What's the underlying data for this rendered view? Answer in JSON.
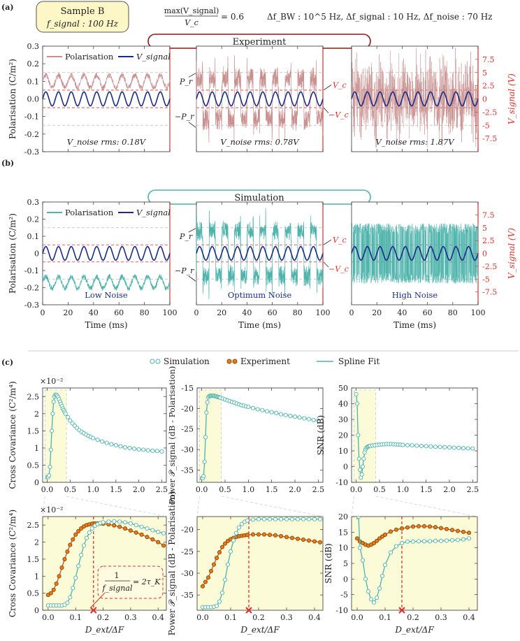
{
  "header": {
    "sample_name": "Sample B",
    "sample_freq": "f_signal : 100 Hz",
    "ratio_num": "max(V_signal)",
    "ratio_den": "V_c",
    "ratio_val": "= 0.6",
    "params": "Δf_BW : 10^5 Hz, Δf_signal : 10 Hz,   Δf_noise : 70 Hz"
  },
  "panel_labels": [
    "(a)",
    "(b)",
    "(c)"
  ],
  "colors": {
    "experiment": "#c99090",
    "simulation": "#4db3ab",
    "vsignal": "#1b2c82",
    "red": "#e0302b",
    "orange": "#e87b1e",
    "spline": "#cc4b34",
    "highlight": "#fcfbd7",
    "sample_box": "#fdf7c8"
  },
  "sections": {
    "experiment": {
      "title": "Experiment",
      "ylabel_left": "Polarisation (C/m²)",
      "ylabel_right": "V_signal (V)",
      "noise_labels": [
        "V_noise rms: 0.18V",
        "V_noise rms: 0.78V",
        "V_noise rms: 1.87V"
      ],
      "legend": [
        "Polarisation",
        "V_signal"
      ],
      "pr_labels": [
        "P_r",
        "−P_r"
      ],
      "vc_labels": [
        "V_c",
        "−V_c"
      ]
    },
    "simulation": {
      "title": "Simulation",
      "ylabel_left": "Polarisation (C/m²)",
      "ylabel_right": "V_signal (V)",
      "noise_labels": [
        "Low Noise",
        "Optimum Noise",
        "High Noise"
      ],
      "legend": [
        "Polarisation",
        "V_signal"
      ],
      "pr_labels": [
        "P_r",
        "−P_r"
      ],
      "vc_labels": [
        "V_c",
        "−V_c"
      ],
      "xlabel": "Time (ms)"
    }
  },
  "legend_c": [
    "Simulation",
    "Experiment",
    "Spline Fit"
  ],
  "annotation": {
    "numerator": "1",
    "denominator": "f_signal",
    "rhs": "= 2τ_K"
  },
  "chart_data": [
    {
      "type": "line",
      "id": "a-1",
      "title": "Experiment",
      "xlabel": "",
      "ylabel": "Polarisation (C/m²)",
      "xlim": [
        0,
        100
      ],
      "ylim": [
        -0.3,
        0.3
      ],
      "yticks": [
        "0.3",
        "0.2",
        "0.1",
        "0.0",
        "-0.1",
        "-0.2",
        "-0.3"
      ],
      "y2lim": [
        -10,
        10
      ],
      "y2ticks": [
        "7.5",
        "5",
        "2.5",
        "0",
        "-2.5",
        "-5",
        "-7.5"
      ],
      "series": [
        {
          "name": "Polarisation",
          "mean": 0.1,
          "noise_rms_V": 0.18
        },
        {
          "name": "V_signal",
          "amplitude_V": 1.5,
          "freq_Hz": 100
        }
      ]
    },
    {
      "type": "line",
      "id": "a-2",
      "title": "Experiment",
      "noise_rms_V": 0.78,
      "xlim": [
        0,
        100
      ],
      "ylim": [
        -0.3,
        0.3
      ]
    },
    {
      "type": "line",
      "id": "a-3",
      "title": "Experiment",
      "noise_rms_V": 1.87,
      "xlim": [
        0,
        100
      ],
      "ylim": [
        -0.3,
        0.3
      ]
    },
    {
      "type": "line",
      "id": "b-1",
      "title": "Simulation",
      "noise": "Low Noise",
      "xlim": [
        0,
        100
      ],
      "ylim": [
        -0.3,
        0.3
      ],
      "xticks": [
        "0",
        "20",
        "40",
        "60",
        "80",
        "100"
      ],
      "yticks": [
        "0.3",
        "0.2",
        "0.1",
        "0",
        "-0.1",
        "-0.2",
        "-0.3"
      ],
      "xlabel": "Time (ms)"
    },
    {
      "type": "line",
      "id": "b-2",
      "title": "Simulation",
      "noise": "Optimum Noise",
      "xlim": [
        0,
        100
      ],
      "ylim": [
        -0.3,
        0.3
      ],
      "xlabel": "Time (ms)"
    },
    {
      "type": "line",
      "id": "b-3",
      "title": "Simulation",
      "noise": "High Noise",
      "xlim": [
        0,
        100
      ],
      "ylim": [
        -0.3,
        0.3
      ],
      "xlabel": "Time (ms)"
    },
    {
      "type": "scatter",
      "id": "c-top-1",
      "ylabel": "Cross Covariance (C²/m⁴)",
      "exponent": "×10⁻²",
      "xlim": [
        -0.1,
        2.6
      ],
      "ylim": [
        0,
        2.75
      ],
      "xticks": [
        "0.0",
        "0.5",
        "1.0",
        "1.5",
        "2.0",
        "2.5"
      ],
      "yticks": [
        "0",
        "0.5",
        "1",
        "1.5",
        "2",
        "2.5"
      ],
      "simulation": {
        "x": [
          0,
          0.02,
          0.04,
          0.06,
          0.08,
          0.1,
          0.12,
          0.14,
          0.16,
          0.18,
          0.2,
          0.22,
          0.24,
          0.26,
          0.28,
          0.3,
          0.32,
          0.34,
          0.36,
          0.38,
          0.4,
          0.45,
          0.5,
          0.55,
          0.6,
          0.65,
          0.7,
          0.75,
          0.8,
          0.85,
          0.9,
          0.95,
          1.0,
          1.1,
          1.2,
          1.3,
          1.4,
          1.5,
          1.6,
          1.7,
          1.8,
          1.9,
          2.0,
          2.1,
          2.2,
          2.3,
          2.4,
          2.5
        ],
        "y": [
          0.15,
          0.15,
          0.2,
          0.45,
          0.95,
          1.5,
          2.0,
          2.35,
          2.5,
          2.55,
          2.55,
          2.52,
          2.48,
          2.42,
          2.35,
          2.28,
          2.22,
          2.15,
          2.1,
          2.05,
          2.0,
          1.9,
          1.8,
          1.72,
          1.65,
          1.58,
          1.52,
          1.47,
          1.43,
          1.39,
          1.35,
          1.32,
          1.29,
          1.24,
          1.19,
          1.15,
          1.11,
          1.08,
          1.05,
          1.02,
          1.0,
          0.98,
          0.96,
          0.95,
          0.93,
          0.92,
          0.91,
          0.9
        ]
      }
    },
    {
      "type": "scatter",
      "id": "c-top-2",
      "ylabel": "Power 𝒫_signal (dB - Polarisation)",
      "xlim": [
        -0.1,
        2.6
      ],
      "ylim": [
        -38,
        -15
      ],
      "xticks": [
        "0.0",
        "0.5",
        "1.0",
        "1.5",
        "2.0",
        "2.5"
      ],
      "yticks": [
        "-15",
        "-20",
        "-25",
        "-30",
        "-35"
      ],
      "simulation": {
        "x": [
          0,
          0.02,
          0.04,
          0.06,
          0.08,
          0.1,
          0.12,
          0.14,
          0.16,
          0.18,
          0.2,
          0.22,
          0.24,
          0.26,
          0.28,
          0.3,
          0.32,
          0.34,
          0.36,
          0.38,
          0.4,
          0.45,
          0.5,
          0.55,
          0.6,
          0.65,
          0.7,
          0.75,
          0.8,
          0.85,
          0.9,
          0.95,
          1.0,
          1.1,
          1.2,
          1.3,
          1.4,
          1.5,
          1.6,
          1.7,
          1.8,
          1.9,
          2.0,
          2.1,
          2.2,
          2.3,
          2.4,
          2.5
        ],
        "y": [
          -37,
          -37,
          -36.5,
          -33,
          -27,
          -21,
          -18.5,
          -17.3,
          -17.0,
          -16.9,
          -16.9,
          -16.9,
          -16.9,
          -16.9,
          -17.0,
          -17.0,
          -17.1,
          -17.2,
          -17.2,
          -17.3,
          -17.4,
          -17.6,
          -17.8,
          -18.0,
          -18.2,
          -18.4,
          -18.6,
          -18.8,
          -19.0,
          -19.2,
          -19.3,
          -19.5,
          -19.6,
          -19.9,
          -20.2,
          -20.4,
          -20.7,
          -20.9,
          -21.1,
          -21.4,
          -21.6,
          -21.8,
          -22.0,
          -22.2,
          -22.4,
          -22.6,
          -22.8,
          -23.0
        ]
      }
    },
    {
      "type": "scatter",
      "id": "c-top-3",
      "ylabel": "SNR (dB)",
      "xlim": [
        -0.1,
        2.6
      ],
      "ylim": [
        -10,
        50
      ],
      "xticks": [
        "0.0",
        "0.5",
        "1.0",
        "1.5",
        "2.0",
        "2.5"
      ],
      "yticks": [
        "50",
        "40",
        "30",
        "20",
        "10",
        "0",
        "-10"
      ],
      "simulation": {
        "x": [
          0,
          0.02,
          0.04,
          0.06,
          0.08,
          0.1,
          0.12,
          0.14,
          0.16,
          0.18,
          0.2,
          0.22,
          0.24,
          0.26,
          0.28,
          0.3,
          0.35,
          0.4,
          0.45,
          0.5,
          0.55,
          0.6,
          0.65,
          0.7,
          0.75,
          0.8,
          0.85,
          0.9,
          0.95,
          1.0,
          1.1,
          1.2,
          1.3,
          1.4,
          1.5,
          1.6,
          1.7,
          1.8,
          1.9,
          2.0,
          2.1,
          2.2,
          2.3,
          2.4,
          2.5
        ],
        "y": [
          46,
          40,
          20,
          5,
          -2,
          -7,
          -5,
          0,
          5,
          9,
          11,
          12,
          12.5,
          12.8,
          13,
          13.2,
          13.4,
          13.6,
          13.8,
          14,
          14.1,
          14.2,
          14.3,
          14.3,
          14.3,
          14.2,
          14.1,
          14.0,
          13.9,
          13.8,
          13.6,
          13.5,
          13.3,
          13.1,
          13.0,
          12.8,
          12.6,
          12.5,
          12.3,
          12.2,
          12.0,
          11.9,
          11.7,
          11.6,
          11.5
        ]
      }
    },
    {
      "type": "scatter",
      "id": "c-bot-1",
      "ylabel": "Cross Covariance (C²/m⁴)",
      "exponent": "×10⁻²",
      "xlabel": "D_ext/ΔF",
      "xlim": [
        -0.02,
        0.43
      ],
      "ylim": [
        0,
        2.75
      ],
      "xticks": [
        "0.0",
        "0.1",
        "0.2",
        "0.3",
        "0.4"
      ],
      "yticks": [
        "0",
        "0.5",
        "1",
        "1.5",
        "2",
        "2.5"
      ],
      "marker_x": 0.165,
      "simulation": {
        "x": [
          0,
          0.01,
          0.02,
          0.03,
          0.04,
          0.05,
          0.06,
          0.07,
          0.08,
          0.09,
          0.1,
          0.11,
          0.12,
          0.13,
          0.14,
          0.15,
          0.16,
          0.17,
          0.18,
          0.19,
          0.2,
          0.22,
          0.24,
          0.26,
          0.28,
          0.3,
          0.32,
          0.34,
          0.36,
          0.38,
          0.4,
          0.42
        ],
        "y": [
          0.14,
          0.14,
          0.14,
          0.14,
          0.14,
          0.14,
          0.16,
          0.22,
          0.38,
          0.65,
          0.95,
          1.3,
          1.62,
          1.9,
          2.12,
          2.28,
          2.4,
          2.48,
          2.53,
          2.56,
          2.58,
          2.6,
          2.61,
          2.6,
          2.58,
          2.55,
          2.5,
          2.45,
          2.4,
          2.35,
          2.3,
          2.26
        ]
      },
      "experiment": {
        "x": [
          0,
          0.01,
          0.02,
          0.03,
          0.04,
          0.05,
          0.06,
          0.07,
          0.08,
          0.09,
          0.1,
          0.11,
          0.12,
          0.13,
          0.14,
          0.15,
          0.16,
          0.17,
          0.18,
          0.19,
          0.2,
          0.22,
          0.24,
          0.26,
          0.28,
          0.3,
          0.32,
          0.34,
          0.36,
          0.38,
          0.4,
          0.42
        ],
        "y": [
          0.45,
          0.5,
          0.6,
          0.78,
          1.0,
          1.25,
          1.5,
          1.72,
          1.92,
          2.08,
          2.22,
          2.32,
          2.4,
          2.46,
          2.5,
          2.52,
          2.54,
          2.55,
          2.55,
          2.55,
          2.54,
          2.52,
          2.49,
          2.45,
          2.4,
          2.34,
          2.28,
          2.22,
          2.15,
          2.08,
          2.0,
          1.9
        ]
      }
    },
    {
      "type": "scatter",
      "id": "c-bot-2",
      "ylabel": "Power 𝒫_signal (dB - Polarisation)",
      "xlabel": "D_ext/ΔF",
      "xlim": [
        -0.02,
        0.43
      ],
      "ylim": [
        -38.5,
        -17
      ],
      "xticks": [
        "0.0",
        "0.1",
        "0.2",
        "0.3",
        "0.4"
      ],
      "yticks": [
        "-20",
        "-25",
        "-30",
        "-35"
      ],
      "marker_x": 0.165,
      "simulation": {
        "x": [
          0,
          0.01,
          0.02,
          0.03,
          0.04,
          0.05,
          0.06,
          0.07,
          0.08,
          0.09,
          0.1,
          0.11,
          0.12,
          0.13,
          0.14,
          0.15,
          0.16,
          0.18,
          0.2,
          0.22,
          0.24,
          0.26,
          0.28,
          0.3,
          0.32,
          0.34,
          0.36,
          0.38,
          0.4,
          0.42
        ],
        "y": [
          -37.8,
          -37.8,
          -37.8,
          -37.8,
          -37.7,
          -37.5,
          -36.5,
          -34.5,
          -31.5,
          -28,
          -25,
          -22.5,
          -20.8,
          -19.5,
          -18.7,
          -18.2,
          -17.9,
          -17.7,
          -17.6,
          -17.6,
          -17.6,
          -17.6,
          -17.6,
          -17.6,
          -17.6,
          -17.6,
          -17.6,
          -17.6,
          -17.6,
          -17.6
        ]
      },
      "experiment": {
        "x": [
          0,
          0.01,
          0.02,
          0.03,
          0.04,
          0.05,
          0.06,
          0.07,
          0.08,
          0.09,
          0.1,
          0.11,
          0.12,
          0.13,
          0.14,
          0.15,
          0.16,
          0.18,
          0.2,
          0.22,
          0.24,
          0.26,
          0.28,
          0.3,
          0.32,
          0.34,
          0.36,
          0.38,
          0.4,
          0.42
        ],
        "y": [
          -33,
          -32,
          -31,
          -29.5,
          -28,
          -26.5,
          -25.2,
          -24,
          -23.2,
          -22.6,
          -22.2,
          -21.9,
          -21.7,
          -21.5,
          -21.4,
          -21.3,
          -21.2,
          -21.1,
          -21.1,
          -21.1,
          -21.2,
          -21.3,
          -21.5,
          -21.7,
          -21.9,
          -22.1,
          -22.3,
          -22.5,
          -22.7,
          -22.9
        ]
      }
    },
    {
      "type": "scatter",
      "id": "c-bot-3",
      "ylabel": "SNR (dB)",
      "xlabel": "D_ext/ΔF",
      "xlim": [
        -0.02,
        0.43
      ],
      "ylim": [
        -10,
        20
      ],
      "xticks": [
        "0.0",
        "0.1",
        "0.2",
        "0.3",
        "0.4"
      ],
      "yticks": [
        "20",
        "15",
        "10",
        "5",
        "0",
        "-5",
        "-10"
      ],
      "marker_x": 0.16,
      "simulation": {
        "x": [
          0.005,
          0.01,
          0.02,
          0.03,
          0.04,
          0.05,
          0.06,
          0.07,
          0.08,
          0.09,
          0.1,
          0.12,
          0.14,
          0.16,
          0.18,
          0.2,
          0.22,
          0.24,
          0.26,
          0.28,
          0.3,
          0.32,
          0.34,
          0.36,
          0.38,
          0.4
        ],
        "y": [
          20,
          10,
          6,
          0,
          -4,
          -6.5,
          -7.5,
          -6,
          -3,
          1,
          4.5,
          8.5,
          10.5,
          11.5,
          12,
          12,
          12.1,
          12.1,
          12.1,
          12.2,
          12.2,
          12.3,
          12.4,
          12.5,
          12.7,
          13
        ]
      },
      "experiment": {
        "x": [
          0,
          0.01,
          0.02,
          0.03,
          0.04,
          0.05,
          0.06,
          0.07,
          0.08,
          0.09,
          0.1,
          0.12,
          0.14,
          0.16,
          0.18,
          0.2,
          0.22,
          0.24,
          0.26,
          0.28,
          0.3,
          0.32,
          0.34,
          0.36,
          0.38,
          0.4
        ],
        "y": [
          13,
          12,
          11.5,
          11,
          10.7,
          11,
          11.5,
          12.2,
          13,
          13.6,
          14.2,
          15.2,
          15.8,
          16.2,
          16.5,
          16.8,
          16.9,
          16.9,
          16.8,
          16.6,
          16.3,
          16,
          15.7,
          15.4,
          15.1,
          14.8
        ]
      }
    }
  ]
}
